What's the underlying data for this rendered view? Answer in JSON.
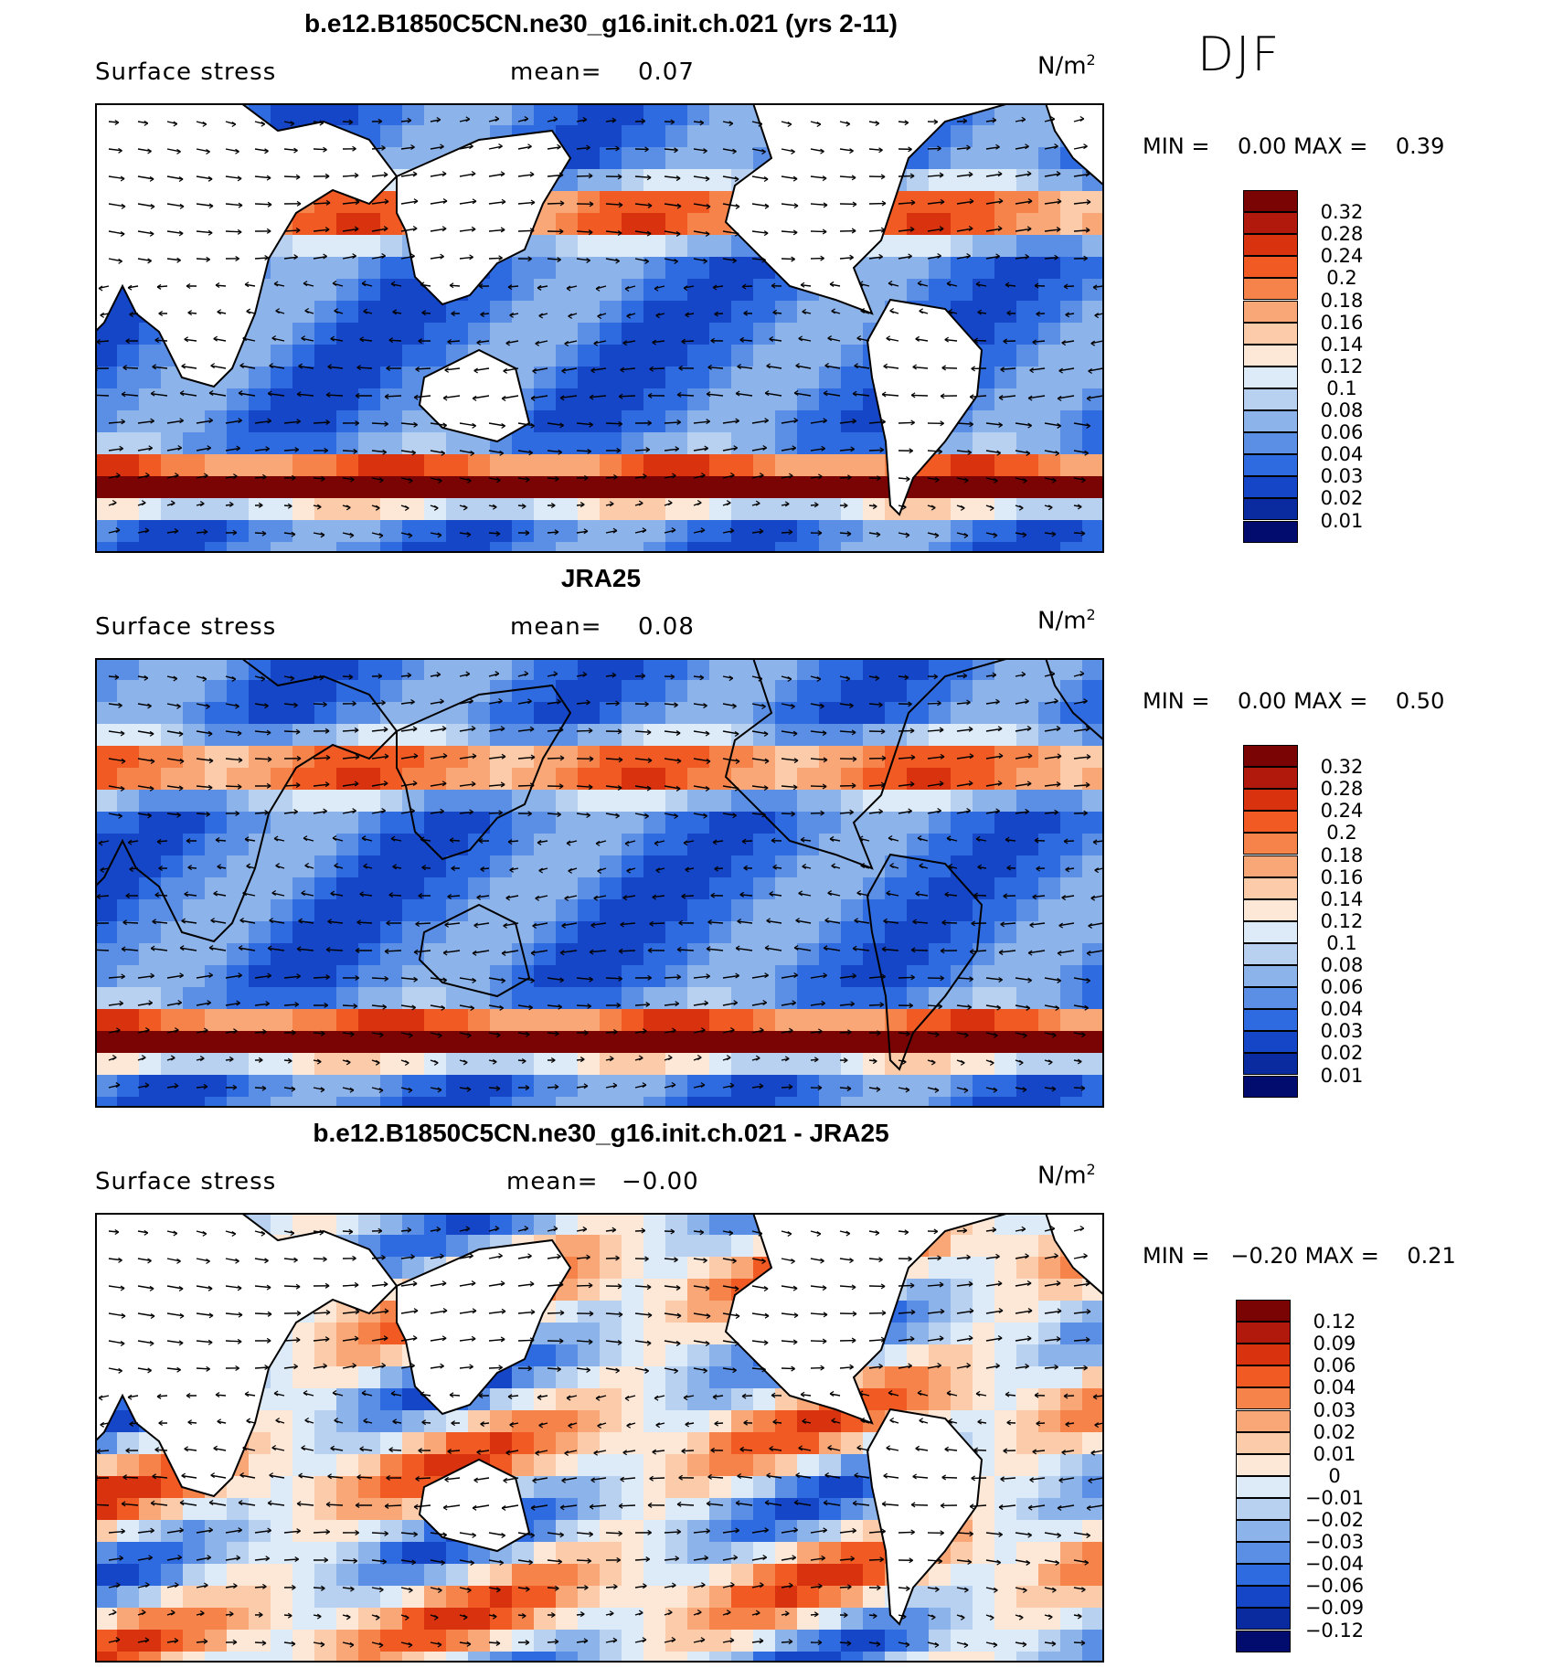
{
  "season": "DJF",
  "panels": [
    {
      "title": "b.e12.B1850C5CN.ne30_g16.init.ch.021 (yrs 2-11)",
      "variable": "Surface stress",
      "mean_label": "mean=",
      "mean_value": "0.07",
      "units": "N/m",
      "units_exp": "2",
      "min_label": "MIN =",
      "min_value": "0.00",
      "max_label": "MAX =",
      "max_value": "0.39",
      "colorbar_labels": [
        "0.32",
        "0.28",
        "0.24",
        "0.2",
        "0.18",
        "0.16",
        "0.14",
        "0.12",
        "0.1",
        "0.08",
        "0.06",
        "0.04",
        "0.03",
        "0.02",
        "0.01"
      ],
      "colorbar_colors": [
        "#7a0403",
        "#b1190c",
        "#d9320e",
        "#f15a22",
        "#f6844a",
        "#f9a777",
        "#fbcbaa",
        "#fde7d6",
        "#ddeaf7",
        "#b8d1f0",
        "#8db4ea",
        "#5b8fe6",
        "#2f6be0",
        "#1546c8",
        "#0a2aa0",
        "#020c6e"
      ]
    },
    {
      "title": "JRA25",
      "variable": "Surface stress",
      "mean_label": "mean=",
      "mean_value": "0.08",
      "units": "N/m",
      "units_exp": "2",
      "min_label": "MIN =",
      "min_value": "0.00",
      "max_label": "MAX =",
      "max_value": "0.50",
      "colorbar_labels": [
        "0.32",
        "0.28",
        "0.24",
        "0.2",
        "0.18",
        "0.16",
        "0.14",
        "0.12",
        "0.1",
        "0.08",
        "0.06",
        "0.04",
        "0.03",
        "0.02",
        "0.01"
      ],
      "colorbar_colors": [
        "#7a0403",
        "#b1190c",
        "#d9320e",
        "#f15a22",
        "#f6844a",
        "#f9a777",
        "#fbcbaa",
        "#fde7d6",
        "#ddeaf7",
        "#b8d1f0",
        "#8db4ea",
        "#5b8fe6",
        "#2f6be0",
        "#1546c8",
        "#0a2aa0",
        "#020c6e"
      ]
    },
    {
      "title": "b.e12.B1850C5CN.ne30_g16.init.ch.021 - JRA25",
      "variable": "Surface stress",
      "mean_label": "mean=",
      "mean_value": "−0.00",
      "units": "N/m",
      "units_exp": "2",
      "min_label": "MIN =",
      "min_value": "−0.20",
      "max_label": "MAX =",
      "max_value": "0.21",
      "colorbar_labels": [
        "0.12",
        "0.09",
        "0.06",
        "0.04",
        "0.03",
        "0.02",
        "0.01",
        "0",
        "−0.01",
        "−0.02",
        "−0.03",
        "−0.04",
        "−0.06",
        "−0.09",
        "−0.12"
      ],
      "colorbar_colors": [
        "#7a0403",
        "#b1190c",
        "#d9320e",
        "#f15a22",
        "#f6844a",
        "#f9a777",
        "#fbcbaa",
        "#fde7d6",
        "#ddeaf7",
        "#b8d1f0",
        "#8db4ea",
        "#5b8fe6",
        "#2f6be0",
        "#1546c8",
        "#0a2aa0",
        "#020c6e"
      ]
    }
  ]
}
